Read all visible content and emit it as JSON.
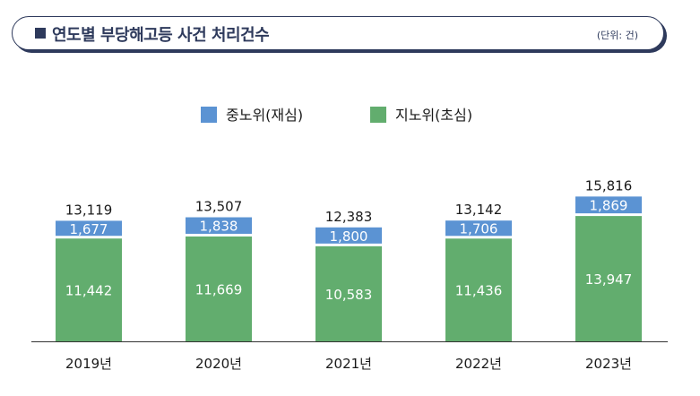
{
  "header": {
    "title": "연도별 부당해고등 사건 처리건수",
    "unit": "(단위: 건)"
  },
  "colors": {
    "series_appeal": "#5b93d3",
    "series_first": "#62ad6e",
    "frame": "#2e3a5c"
  },
  "chart_data": {
    "type": "bar",
    "stacked": true,
    "categories": [
      "2019년",
      "2020년",
      "2021년",
      "2022년",
      "2023년"
    ],
    "series": [
      {
        "name": "지노위(초심)",
        "values": [
          11442,
          11669,
          10583,
          11436,
          13947
        ]
      },
      {
        "name": "중노위(재심)",
        "values": [
          1677,
          1838,
          1800,
          1706,
          1869
        ]
      }
    ],
    "totals": [
      13119,
      13507,
      12383,
      13142,
      15816
    ],
    "total_labels": [
      "13,119",
      "13,507",
      "12,383",
      "13,142",
      "15,816"
    ],
    "value_labels": [
      [
        "11,442",
        "11,669",
        "10,583",
        "11,436",
        "13,947"
      ],
      [
        "1,677",
        "1,838",
        "1,800",
        "1,706",
        "1,869"
      ]
    ],
    "legend": [
      "중노위(재심)",
      "지노위(초심)"
    ],
    "legend_position": "top-center",
    "grid": false,
    "ylim": [
      0,
      15816
    ]
  }
}
